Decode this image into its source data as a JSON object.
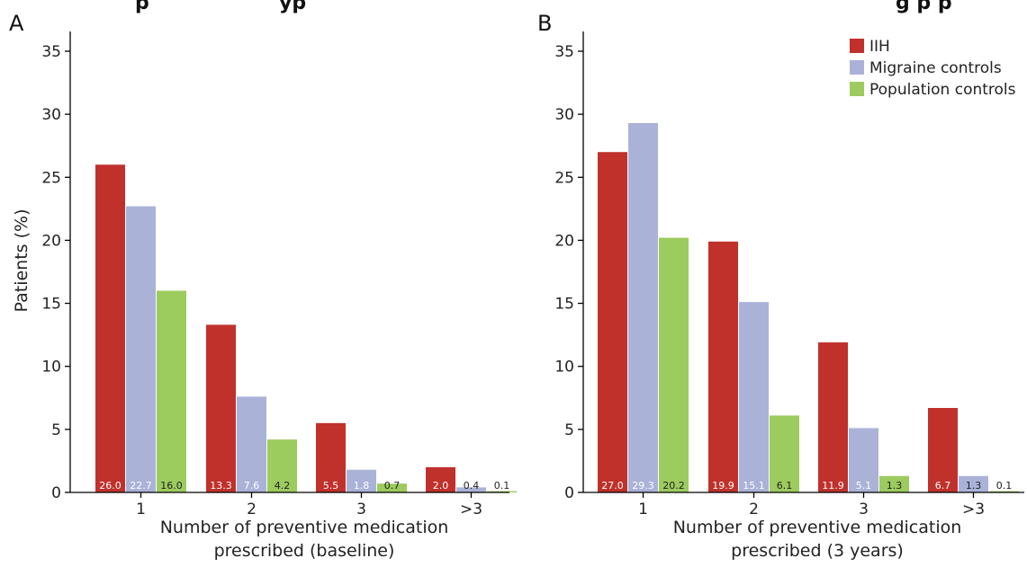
{
  "colors": {
    "IIH": "#c0312b",
    "Migraine controls": "#aab2d8",
    "Population controls": "#9ccb5e"
  },
  "title_fragment": {
    "left": "p",
    "mid": "yp",
    "right": "g   p p"
  },
  "legend": [
    "IIH",
    "Migraine controls",
    "Population controls"
  ],
  "chart_data": [
    {
      "type": "bar",
      "panel_label": "A",
      "categories": [
        "1",
        "2",
        "3",
        ">3"
      ],
      "series": [
        {
          "name": "IIH",
          "values": [
            26.0,
            13.3,
            5.5,
            2.0
          ],
          "labels": [
            "26.0",
            "13.3",
            "5.5",
            "2.0"
          ]
        },
        {
          "name": "Migraine controls",
          "values": [
            22.7,
            7.6,
            1.8,
            0.4
          ],
          "labels": [
            "22.7",
            "7.6",
            "1.8",
            "0.4"
          ]
        },
        {
          "name": "Population controls",
          "values": [
            16.0,
            4.2,
            0.7,
            0.1
          ],
          "labels": [
            "16.0",
            "4.2",
            "0.7",
            "0.1"
          ]
        }
      ],
      "xlabel": [
        "Number of preventive medication",
        "prescribed (baseline)"
      ],
      "ylabel": "Patients (%)",
      "ylim": [
        0,
        35
      ],
      "yticks": [
        0,
        5,
        10,
        15,
        20,
        25,
        30,
        35
      ],
      "legend_shown": false
    },
    {
      "type": "bar",
      "panel_label": "B",
      "categories": [
        "1",
        "2",
        "3",
        ">3"
      ],
      "series": [
        {
          "name": "IIH",
          "values": [
            27.0,
            19.9,
            11.9,
            6.7
          ],
          "labels": [
            "27.0",
            "19.9",
            "11.9",
            "6.7"
          ]
        },
        {
          "name": "Migraine controls",
          "values": [
            29.3,
            15.1,
            5.1,
            1.3
          ],
          "labels": [
            "29.3",
            "15.1",
            "5.1",
            "1.3"
          ]
        },
        {
          "name": "Population controls",
          "values": [
            20.2,
            6.1,
            1.3,
            0.1
          ],
          "labels": [
            "20.2",
            "6.1",
            "1.3",
            "0.1"
          ]
        }
      ],
      "xlabel": [
        "Number of preventive medication",
        "prescribed (3 years)"
      ],
      "ylabel": "",
      "ylim": [
        0,
        35
      ],
      "yticks": [
        0,
        5,
        10,
        15,
        20,
        25,
        30,
        35
      ],
      "legend_shown": true,
      "legend_position": "top-right"
    }
  ]
}
